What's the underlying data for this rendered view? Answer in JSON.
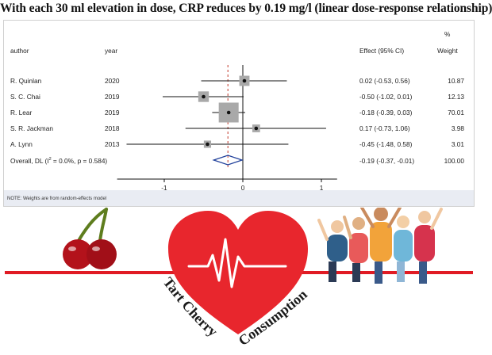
{
  "headline": "With each 30 ml elevation in dose, CRP reduces by 0.19 mg/l (linear dose-response relationship)",
  "forest": {
    "col_author": "author",
    "col_year": "year",
    "col_effect": "Effect (95% CI)",
    "col_pct": "%",
    "col_weight": "Weight",
    "note": "NOTE: Weights are from random-effects model"
  },
  "chart_data": {
    "type": "forest",
    "xlim": [
      -1.6,
      1.2
    ],
    "xticks": [
      -1,
      0,
      1
    ],
    "tick_labels": [
      "-1",
      "0",
      "1"
    ],
    "reference_line": 0,
    "pooled_line": -0.19,
    "studies": [
      {
        "author": "R. Quinlan",
        "year": "2020",
        "effect": 0.02,
        "lower": -0.53,
        "upper": 0.56,
        "ci_text": "0.02 (-0.53, 0.56)",
        "weight": 10.87,
        "weight_text": "10.87"
      },
      {
        "author": "S. C. Chai",
        "year": "2019",
        "effect": -0.5,
        "lower": -1.02,
        "upper": 0.01,
        "ci_text": "-0.50 (-1.02, 0.01)",
        "weight": 12.13,
        "weight_text": "12.13"
      },
      {
        "author": "R. Lear",
        "year": "2019",
        "effect": -0.18,
        "lower": -0.39,
        "upper": 0.03,
        "ci_text": "-0.18 (-0.39, 0.03)",
        "weight": 70.01,
        "weight_text": "70.01"
      },
      {
        "author": "S. R. Jackman",
        "year": "2018",
        "effect": 0.17,
        "lower": -0.73,
        "upper": 1.06,
        "ci_text": "0.17 (-0.73, 1.06)",
        "weight": 3.98,
        "weight_text": "3.98"
      },
      {
        "author": "A. Lynn",
        "year": "2013",
        "effect": -0.45,
        "lower": -1.48,
        "upper": 0.58,
        "ci_text": "-0.45 (-1.48, 0.58)",
        "weight": 3.01,
        "weight_text": "3.01"
      }
    ],
    "overall": {
      "label_prefix": "Overall, DL (I",
      "label_sup": "2",
      "label_suffix": " = 0.0%, p = 0.584)",
      "effect": -0.19,
      "lower": -0.37,
      "upper": -0.01,
      "ci_text": "-0.19 (-0.37, -0.01)",
      "weight_text": "100.00"
    }
  },
  "illustration": {
    "words_line1": "Tart Cherry",
    "words_line2": "Consumption",
    "colors": {
      "heart": "#e8262d",
      "line": "#e01b24",
      "cherry": "#b3121b",
      "stem": "#6b8e23"
    }
  }
}
